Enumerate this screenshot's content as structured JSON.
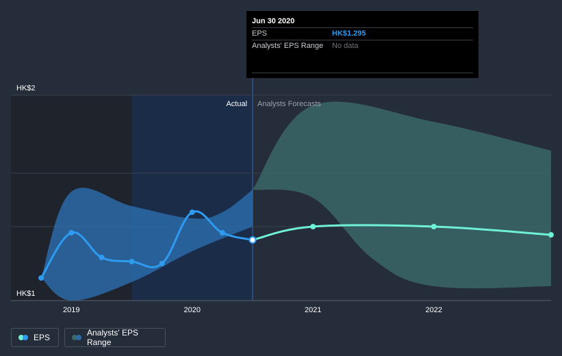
{
  "chart_data": {
    "type": "line",
    "currency_prefix": "HK$",
    "y_ticks": [
      {
        "value": 2,
        "label": "HK$2"
      },
      {
        "value": 1,
        "label": "HK$1"
      }
    ],
    "ylim": [
      1,
      2
    ],
    "x_ticks": [
      {
        "label": "2019",
        "value": 2019.0
      },
      {
        "label": "2020",
        "value": 2020.0
      },
      {
        "label": "2021",
        "value": 2021.0
      },
      {
        "label": "2022",
        "value": 2022.0
      }
    ],
    "xlim": [
      2018.5,
      2022.97
    ],
    "divider_x": 2020.5,
    "past_shade_start": 2019.5,
    "section_labels": {
      "actual": "Actual",
      "forecast": "Analysts Forecasts"
    },
    "series": [
      {
        "name": "EPS",
        "color": "#2f9bf0",
        "points": [
          [
            2018.75,
            1.11
          ],
          [
            2019.0,
            1.33
          ],
          [
            2019.25,
            1.21
          ],
          [
            2019.5,
            1.19
          ],
          [
            2019.75,
            1.18
          ],
          [
            2020.0,
            1.43
          ],
          [
            2020.25,
            1.33
          ],
          [
            2020.5,
            1.295
          ]
        ]
      },
      {
        "name": "EPS forecast",
        "color": "#6ff1d8",
        "points": [
          [
            2020.5,
            1.295
          ],
          [
            2021.0,
            1.36
          ],
          [
            2022.0,
            1.36
          ],
          [
            2022.97,
            1.32
          ]
        ]
      }
    ],
    "range_series": [
      {
        "name": "Analysts' EPS Range (past)",
        "color": "#2c6aa8",
        "upper": [
          [
            2018.75,
            1.11
          ],
          [
            2019.0,
            1.53
          ],
          [
            2019.5,
            1.46
          ],
          [
            2020.0,
            1.4
          ],
          [
            2020.25,
            1.43
          ],
          [
            2020.5,
            1.54
          ]
        ],
        "lower": [
          [
            2018.75,
            1.11
          ],
          [
            2019.0,
            1.0
          ],
          [
            2019.5,
            1.09
          ],
          [
            2020.0,
            1.24
          ],
          [
            2020.5,
            1.36
          ]
        ]
      },
      {
        "name": "Analysts' EPS Range",
        "color": "#3b6a6c",
        "upper": [
          [
            2020.5,
            1.54
          ],
          [
            2021.0,
            1.95
          ],
          [
            2022.0,
            1.87
          ],
          [
            2022.97,
            1.73
          ]
        ],
        "lower": [
          [
            2020.5,
            1.54
          ],
          [
            2021.0,
            1.5
          ],
          [
            2021.5,
            1.2
          ],
          [
            2022.0,
            1.07
          ],
          [
            2022.97,
            1.07
          ]
        ]
      }
    ]
  },
  "tooltip": {
    "date": "Jun 30 2020",
    "rows": [
      {
        "label": "EPS",
        "value": "HK$1.295"
      },
      {
        "label": "Analysts' EPS Range",
        "value": "No data"
      }
    ]
  },
  "legend": [
    {
      "label": "EPS",
      "colors": [
        "#6ff1d8",
        "#2f9bf0"
      ]
    },
    {
      "label": "Analysts' EPS Range",
      "colors": [
        "#3b6a6c",
        "#2c6aa8"
      ]
    }
  ]
}
